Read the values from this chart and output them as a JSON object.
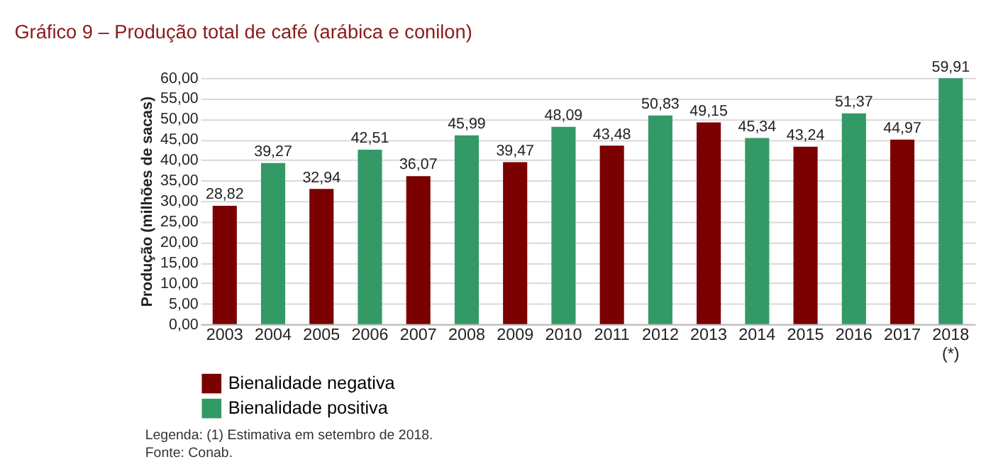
{
  "chart_data": {
    "type": "bar",
    "title": "Gráfico 9 – Produção total de café (arábica e conilon)",
    "ylabel": "Produção (milhões de sacas)",
    "categories": [
      "2003",
      "2004",
      "2005",
      "2006",
      "2007",
      "2008",
      "2009",
      "2010",
      "2011",
      "2012",
      "2013",
      "2014",
      "2015",
      "2016",
      "2017",
      "2018 (*)"
    ],
    "series": [
      {
        "name": "Bienalidade negativa",
        "color": "#7b0000",
        "values": [
          28.82,
          null,
          32.94,
          null,
          36.07,
          null,
          39.47,
          null,
          43.48,
          null,
          49.15,
          null,
          43.24,
          null,
          44.97,
          null
        ],
        "value_labels": [
          "28,82",
          null,
          "32,94",
          null,
          "36,07",
          null,
          "39,47",
          null,
          "43,48",
          null,
          "49,15",
          null,
          "43,24",
          null,
          "44,97",
          null
        ]
      },
      {
        "name": "Bienalidade positiva",
        "color": "#339966",
        "values": [
          null,
          39.27,
          null,
          42.51,
          null,
          45.99,
          null,
          48.09,
          null,
          50.83,
          null,
          45.34,
          null,
          51.37,
          null,
          59.91
        ],
        "value_labels": [
          null,
          "39,27",
          null,
          "42,51",
          null,
          "45,99",
          null,
          "48,09",
          null,
          "50,83",
          null,
          "45,34",
          null,
          "51,37",
          null,
          "59,91"
        ]
      }
    ],
    "legend": "bottom",
    "grid": "y",
    "ylim": [
      0,
      60
    ],
    "yticks": [
      {
        "value": 0,
        "label": "0,00"
      },
      {
        "value": 5,
        "label": "5,00"
      },
      {
        "value": 10,
        "label": "10,00"
      },
      {
        "value": 15,
        "label": "15,00"
      },
      {
        "value": 20,
        "label": "20,00"
      },
      {
        "value": 25,
        "label": "25,00"
      },
      {
        "value": 30,
        "label": "30,00"
      },
      {
        "value": 35,
        "label": "35,00"
      },
      {
        "value": 40,
        "label": "40,00"
      },
      {
        "value": 45,
        "label": "45,00"
      },
      {
        "value": 50,
        "label": "50,00"
      },
      {
        "value": 55,
        "label": "55,00"
      },
      {
        "value": 60,
        "label": "60,00"
      }
    ],
    "annotations": [
      "Legenda: (1) Estimativa em setembro de 2018.",
      "Fonte: Conab."
    ]
  }
}
